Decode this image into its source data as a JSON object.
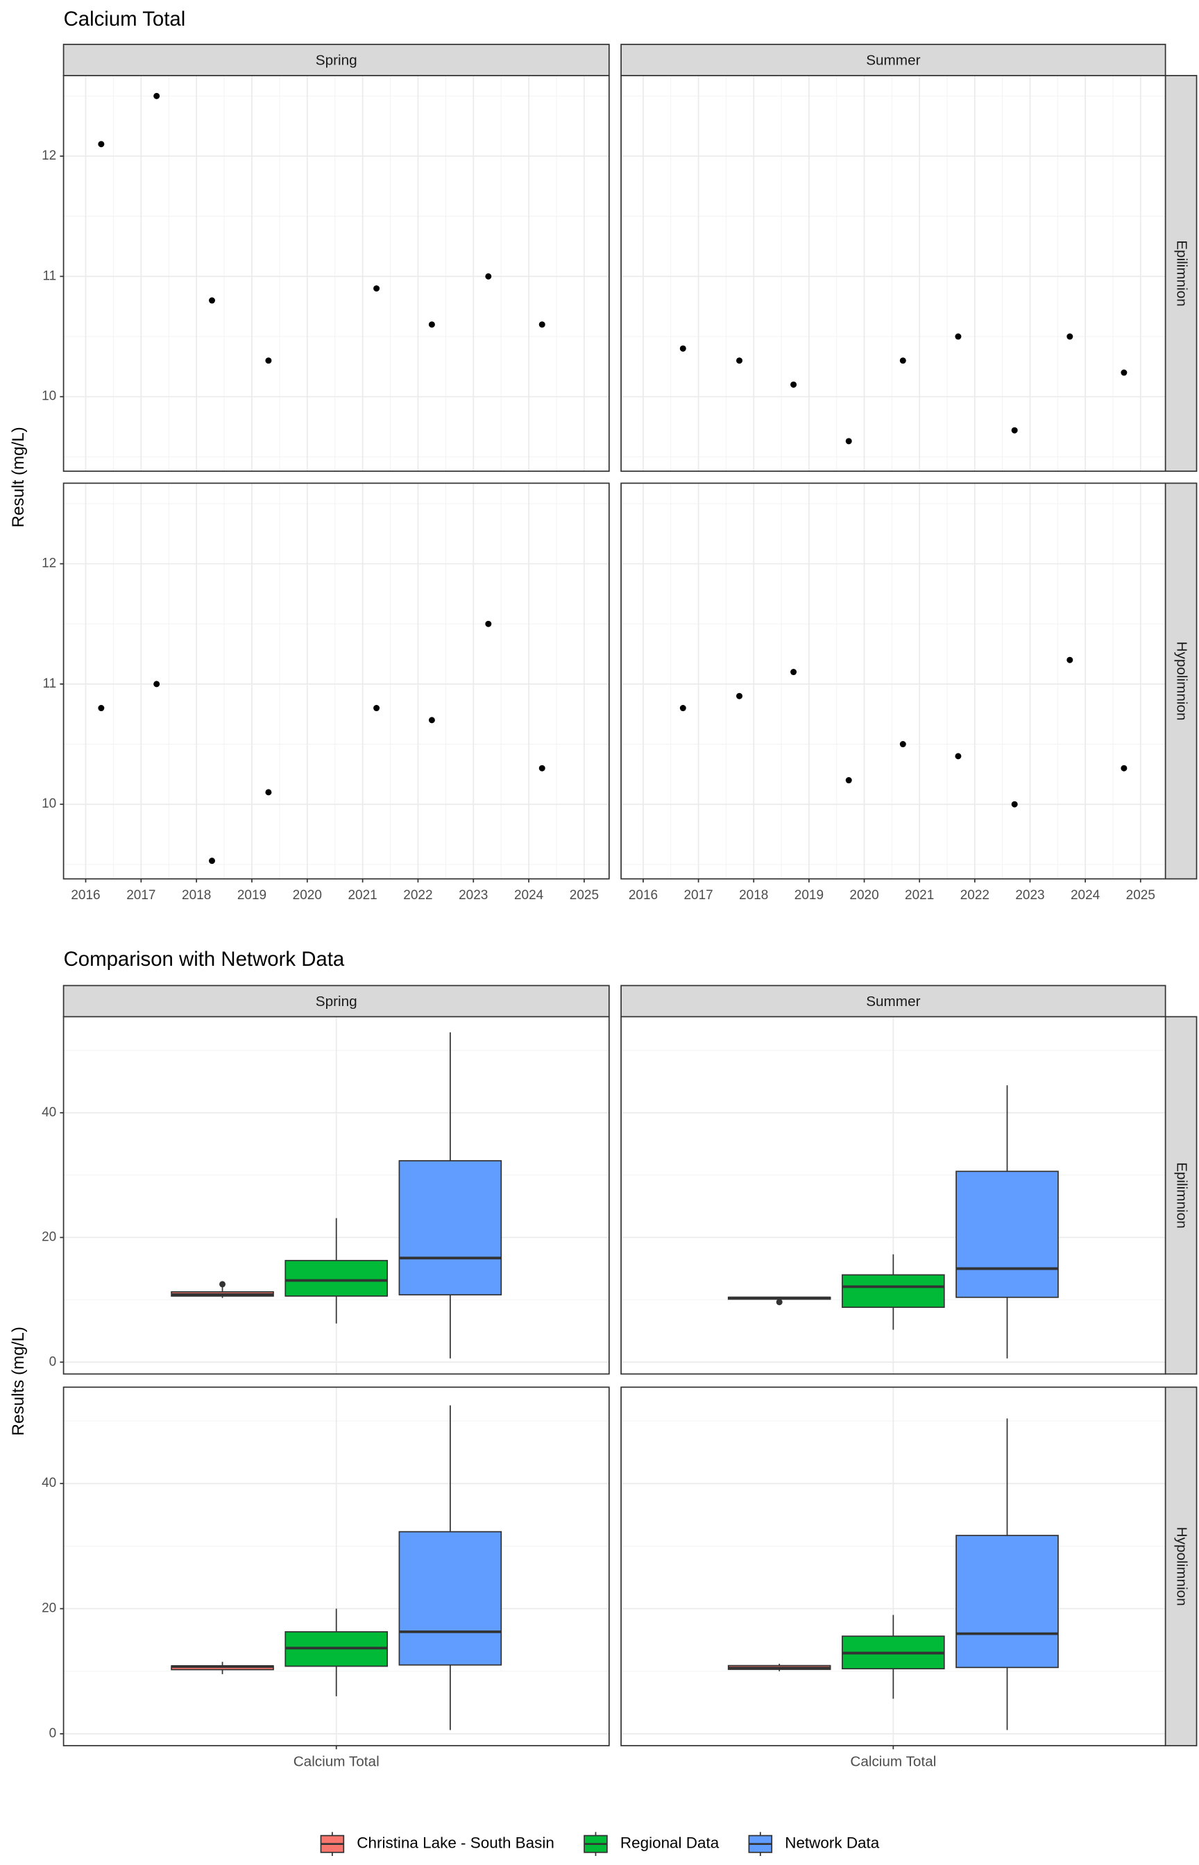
{
  "chart_data": [
    {
      "type": "scatter",
      "title": "Calcium Total",
      "y_label": "Result (mg/L)",
      "columns": [
        "Spring",
        "Summer"
      ],
      "rows": [
        "Epilimnion",
        "Hypolimnion"
      ],
      "xlim": [
        2015.6,
        2025.45
      ],
      "xticks": [
        2016,
        2017,
        2018,
        2019,
        2020,
        2021,
        2022,
        2023,
        2024,
        2025
      ],
      "ylim": [
        9.38,
        12.67
      ],
      "yticks": [
        10,
        11,
        12
      ],
      "grid": true,
      "minor_grid": true,
      "color": "#000000",
      "panels": [
        [
          {
            "x": [
              2016.28,
              2017.28,
              2018.28,
              2019.3,
              2021.25,
              2022.25,
              2023.27,
              2024.24
            ],
            "values": [
              12.1,
              12.5,
              10.8,
              10.3,
              10.9,
              10.6,
              11.0,
              10.6
            ]
          },
          {
            "x": [
              2016.72,
              2017.74,
              2018.72,
              2019.72,
              2020.7,
              2021.7,
              2022.72,
              2023.72,
              2024.7
            ],
            "values": [
              10.4,
              10.3,
              10.1,
              9.63,
              10.3,
              10.5,
              9.72,
              10.5,
              10.2
            ]
          }
        ],
        [
          {
            "x": [
              2016.28,
              2017.28,
              2018.28,
              2019.3,
              2021.25,
              2022.25,
              2023.27,
              2024.24
            ],
            "values": [
              10.8,
              11.0,
              9.53,
              10.1,
              10.8,
              10.7,
              11.5,
              10.3
            ]
          },
          {
            "x": [
              2016.72,
              2017.74,
              2018.72,
              2019.72,
              2020.7,
              2021.7,
              2022.72,
              2023.72,
              2024.7
            ],
            "values": [
              10.8,
              10.9,
              11.1,
              10.2,
              10.5,
              10.4,
              10.0,
              11.2,
              10.3
            ]
          }
        ]
      ]
    },
    {
      "type": "box",
      "title": "Comparison with Network Data",
      "y_label": "Results (mg/L)",
      "columns": [
        "Spring",
        "Summer"
      ],
      "rows": [
        "Epilimnion",
        "Hypolimnion"
      ],
      "categories": [
        "Calcium Total"
      ],
      "ylim": [
        -1.9,
        55.4
      ],
      "yticks": [
        0,
        20,
        40
      ],
      "grid": true,
      "minor_grid": true,
      "legend": "bottom",
      "series": [
        {
          "name": "Christina Lake - South Basin",
          "color": "#F8766D"
        },
        {
          "name": "Regional Data",
          "color": "#00BA38"
        },
        {
          "name": "Network Data",
          "color": "#619CFF"
        }
      ],
      "panels": [
        [
          {
            "boxes": [
              {
                "min": 10.3,
                "q1": 10.6,
                "median": 10.85,
                "q3": 11.275,
                "max": 12.1,
                "outliers": [
                  12.5
                ]
              },
              {
                "min": 6.2,
                "q1": 10.6,
                "median": 13.1,
                "q3": 16.3,
                "max": 23.1
              },
              {
                "min": 0.6,
                "q1": 10.8,
                "median": 16.7,
                "q3": 32.3,
                "max": 52.9
              }
            ]
          },
          {
            "boxes": [
              {
                "min": 9.72,
                "q1": 10.1,
                "median": 10.3,
                "q3": 10.4,
                "max": 10.5,
                "outliers": [
                  9.63
                ]
              },
              {
                "min": 5.2,
                "q1": 8.8,
                "median": 12.1,
                "q3": 14.0,
                "max": 17.3
              },
              {
                "min": 0.6,
                "q1": 10.4,
                "median": 15.0,
                "q3": 30.6,
                "max": 44.4
              }
            ]
          }
        ],
        [
          {
            "boxes": [
              {
                "min": 9.53,
                "q1": 10.25,
                "median": 10.75,
                "q3": 10.85,
                "max": 11.5
              },
              {
                "min": 6.0,
                "q1": 10.8,
                "median": 13.7,
                "q3": 16.3,
                "max": 20.0
              },
              {
                "min": 0.6,
                "q1": 11.0,
                "median": 16.3,
                "q3": 32.3,
                "max": 52.5
              }
            ]
          },
          {
            "boxes": [
              {
                "min": 10.0,
                "q1": 10.3,
                "median": 10.5,
                "q3": 10.9,
                "max": 11.2
              },
              {
                "min": 5.6,
                "q1": 10.4,
                "median": 12.9,
                "q3": 15.6,
                "max": 19.0
              },
              {
                "min": 0.6,
                "q1": 10.6,
                "median": 16.0,
                "q3": 31.7,
                "max": 50.4
              }
            ]
          }
        ]
      ]
    }
  ]
}
